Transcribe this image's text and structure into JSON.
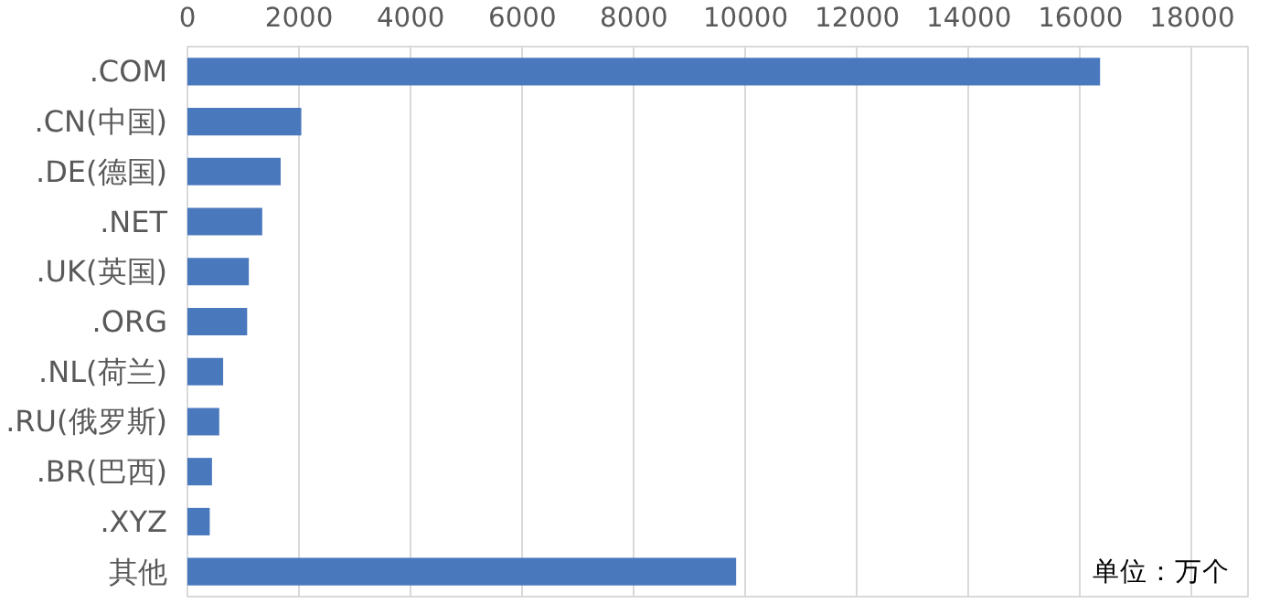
{
  "chart_data": {
    "type": "bar",
    "orientation": "horizontal",
    "categories": [
      ".COM",
      ".CN(中国)",
      ".DE(德国)",
      ".NET",
      ".UK(英国)",
      ".ORG",
      ".NL(荷兰)",
      ".RU(俄罗斯)",
      ".BR(巴西)",
      ".XYZ",
      "其他"
    ],
    "values": [
      16350,
      2040,
      1670,
      1340,
      1100,
      1070,
      640,
      570,
      440,
      400,
      9830
    ],
    "color": "#4a78bd",
    "xlim": [
      0,
      19000
    ],
    "xticks": [
      0,
      2000,
      4000,
      6000,
      8000,
      10000,
      12000,
      14000,
      16000,
      18000
    ],
    "grid": "x",
    "annotations": [
      "单位：万个"
    ]
  }
}
